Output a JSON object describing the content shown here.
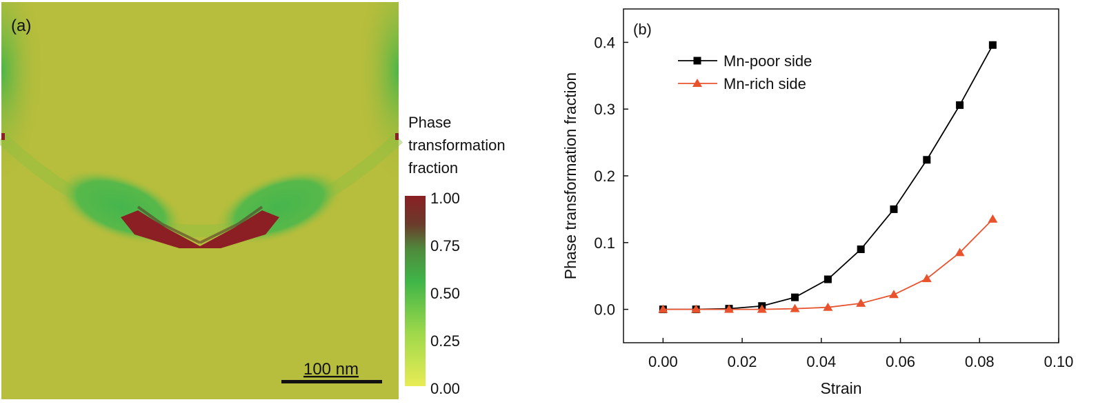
{
  "panel_a": {
    "label": "(a)",
    "scale_bar_label": "100 nm",
    "colorbar": {
      "title_lines": [
        "Phase",
        "transformation",
        "fraction"
      ],
      "ticks": [
        "1.00",
        "0.75",
        "0.50",
        "0.25",
        "0.00"
      ],
      "colors": [
        "#8b1f24",
        "#5a5e30",
        "#3fb548",
        "#9ed84a",
        "#e8ec55"
      ]
    },
    "colors": {
      "background": "#b7bd3c",
      "green": "#4cb84e",
      "dark_red": "#8b1f24"
    }
  },
  "chart_data": {
    "type": "line",
    "panel_label": "(b)",
    "title": "",
    "xlabel": "Strain",
    "ylabel": "Phase transformation fraction",
    "xlim": [
      -0.01,
      0.1
    ],
    "ylim": [
      -0.05,
      0.45
    ],
    "xticks": [
      0.0,
      0.02,
      0.04,
      0.06,
      0.08,
      0.1
    ],
    "xtick_labels": [
      "0.00",
      "0.02",
      "0.04",
      "0.06",
      "0.08",
      "0.10"
    ],
    "yticks": [
      0.0,
      0.1,
      0.2,
      0.3,
      0.4
    ],
    "ytick_labels": [
      "0.0",
      "0.1",
      "0.2",
      "0.3",
      "0.4"
    ],
    "legend_position": "top-left",
    "grid": false,
    "x": [
      0.0,
      0.00833,
      0.01667,
      0.025,
      0.03333,
      0.04167,
      0.05,
      0.05833,
      0.06667,
      0.075,
      0.08333
    ],
    "series": [
      {
        "name": "Mn-poor side",
        "color": "#000000",
        "marker": "square",
        "values": [
          0.0,
          0.0,
          0.001,
          0.005,
          0.018,
          0.045,
          0.09,
          0.15,
          0.224,
          0.306,
          0.396
        ]
      },
      {
        "name": "Mn-rich side",
        "color": "#e8532e",
        "marker": "triangle",
        "values": [
          0.0,
          0.0,
          0.0,
          0.0,
          0.001,
          0.003,
          0.009,
          0.022,
          0.046,
          0.085,
          0.135
        ]
      }
    ]
  }
}
